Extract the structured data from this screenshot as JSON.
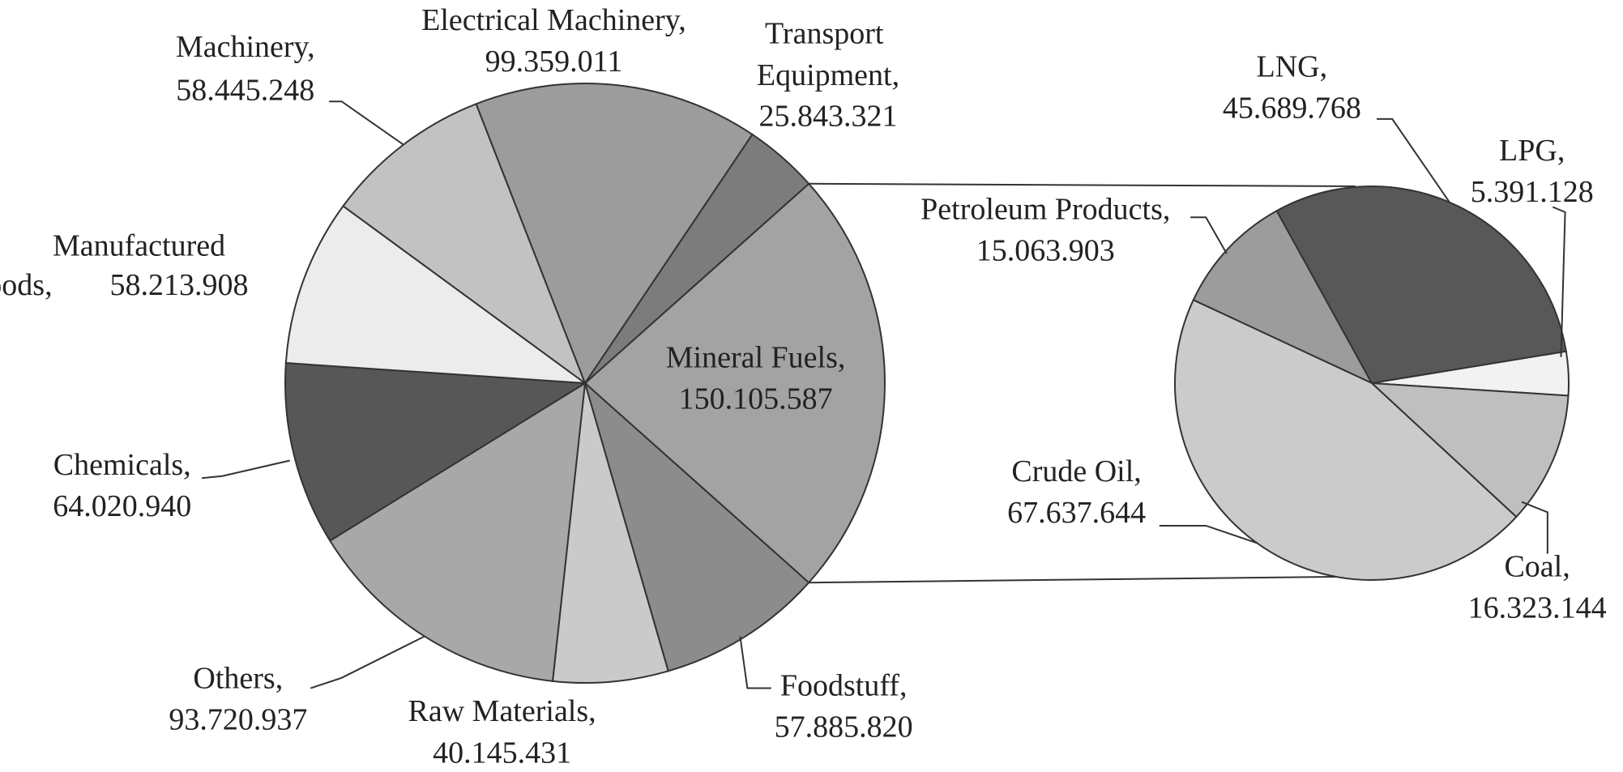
{
  "chart_data": [
    {
      "type": "pie",
      "categories": [
        "Mineral Fuels,",
        "Foodstuff,",
        "Raw Materials,",
        "Others,",
        "Chemicals,",
        "Manufactured Goods,",
        "Machinery,",
        "Electrical Machinery,",
        "Transport Equipment,"
      ],
      "values": [
        150105587,
        57885820,
        40145431,
        93720937,
        64020940,
        58213908,
        58445248,
        99359011,
        25843321
      ],
      "value_labels": [
        "150.105.587",
        "57.885.820",
        "40.145.431",
        "93.720.937",
        "64.020.940",
        "58.213.908",
        "58.445.248",
        "99.359.011",
        "25.843.321"
      ],
      "colors": [
        "#a3a3a3",
        "#8c8c8c",
        "#cacaca",
        "#a8a8a8",
        "#575757",
        "#ececec",
        "#c2c2c2",
        "#9c9c9c",
        "#7c7c7c"
      ]
    },
    {
      "type": "pie",
      "categories": [
        "Petroleum Products,",
        "LNG,",
        "LPG,",
        "Coal,",
        "Crude Oil,"
      ],
      "values": [
        15063903,
        45689768,
        5391128,
        16323144,
        67637644
      ],
      "value_labels": [
        "15.063.903",
        "45.689.768",
        "5.391.128",
        "16.323.144",
        "67.637.644"
      ],
      "colors": [
        "#9c9c9c",
        "#585858",
        "#f2f2f2",
        "#bfbfbf",
        "#cbcbcb"
      ]
    }
  ]
}
